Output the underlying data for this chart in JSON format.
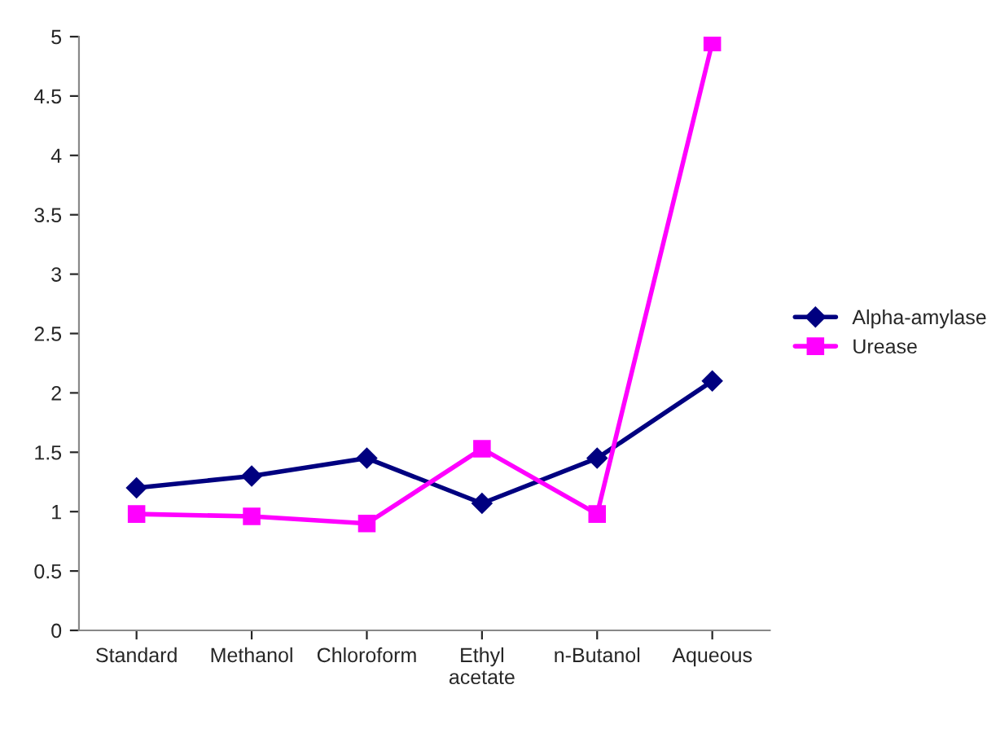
{
  "chart_data": {
    "type": "line",
    "categories": [
      "Standard",
      "Methanol",
      "Chloroform",
      "Ethyl\nacetate",
      "n-Butanol",
      "Aqueous"
    ],
    "series": [
      {
        "name": "Alpha-amylase",
        "color": "#000080",
        "marker": "diamond",
        "values": [
          1.2,
          1.3,
          1.45,
          1.07,
          1.45,
          2.1
        ]
      },
      {
        "name": "Urease",
        "color": "#ff00ff",
        "marker": "square",
        "values": [
          0.98,
          0.96,
          0.9,
          1.53,
          0.98,
          4.95
        ]
      }
    ],
    "ylim": [
      0,
      5
    ],
    "yticks": [
      0,
      0.5,
      1,
      1.5,
      2,
      2.5,
      3,
      3.5,
      4,
      4.5,
      5
    ],
    "grid": false,
    "legend": "right"
  }
}
